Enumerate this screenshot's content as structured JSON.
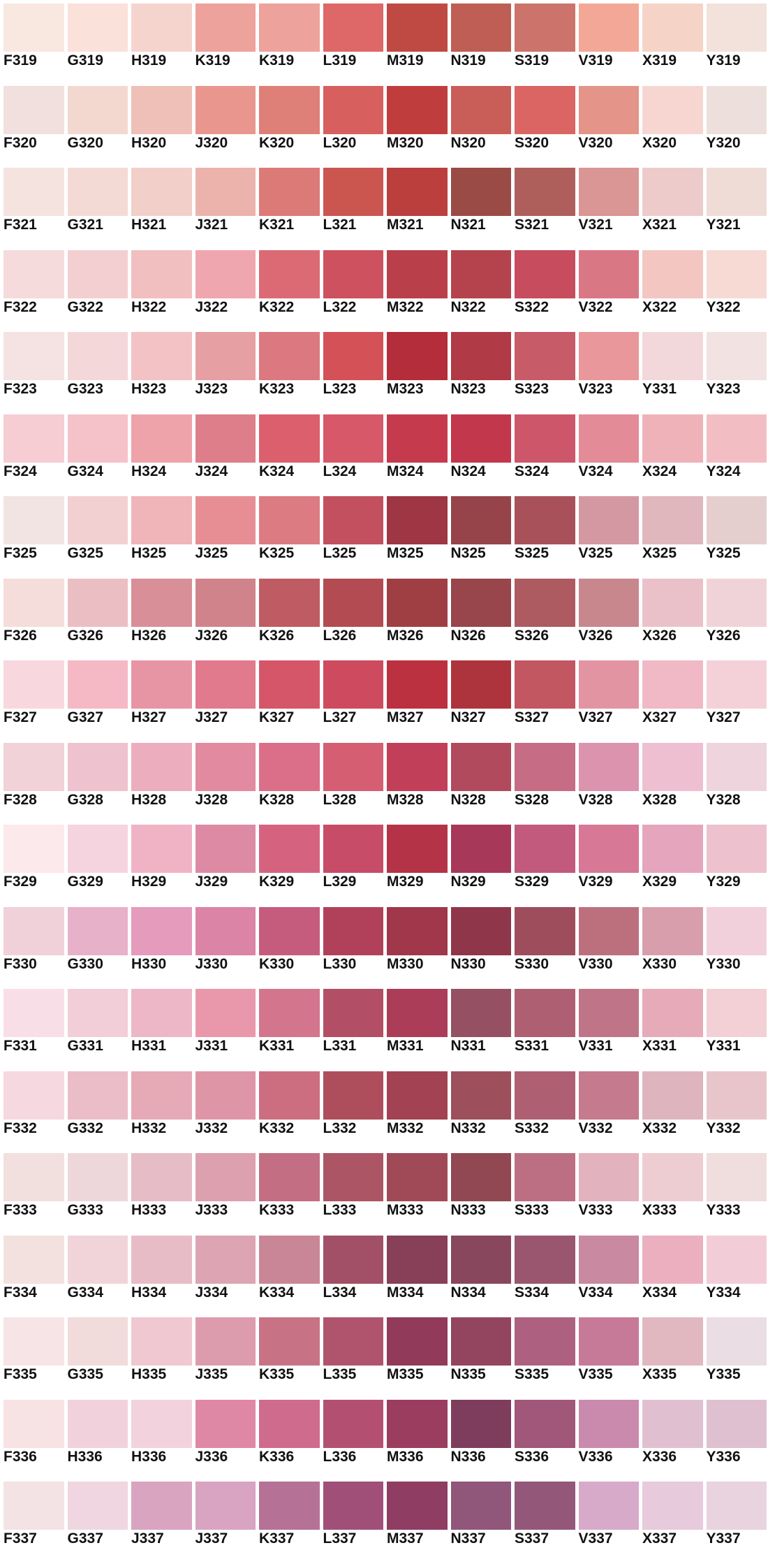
{
  "rows": [
    {
      "cells": [
        {
          "code": "F319",
          "color": "#F9E8E0"
        },
        {
          "code": "G319",
          "color": "#FAE1DA"
        },
        {
          "code": "H319",
          "color": "#F6D4CE"
        },
        {
          "code": "K319",
          "color": "#EEA29C"
        },
        {
          "code": "K319",
          "color": "#EEA29C"
        },
        {
          "code": "L319",
          "color": "#DE6767"
        },
        {
          "code": "M319",
          "color": "#BF4A43"
        },
        {
          "code": "N319",
          "color": "#BE5E54"
        },
        {
          "code": "S319",
          "color": "#CC746B"
        },
        {
          "code": "V319",
          "color": "#F3A897"
        },
        {
          "code": "X319",
          "color": "#F5D4C7"
        },
        {
          "code": "Y319",
          "color": "#F3E2DB"
        }
      ]
    },
    {
      "cells": [
        {
          "code": "F320",
          "color": "#F1E0DD"
        },
        {
          "code": "G320",
          "color": "#F3D8D0"
        },
        {
          "code": "H320",
          "color": "#EEC0B7"
        },
        {
          "code": "J320",
          "color": "#E8968E"
        },
        {
          "code": "K320",
          "color": "#DE7F78"
        },
        {
          "code": "L320",
          "color": "#D75F5E"
        },
        {
          "code": "M320",
          "color": "#C03D3E"
        },
        {
          "code": "N320",
          "color": "#C95D58"
        },
        {
          "code": "S320",
          "color": "#DA6562"
        },
        {
          "code": "V320",
          "color": "#E49488"
        },
        {
          "code": "X320",
          "color": "#F7D6D1"
        },
        {
          "code": "Y320",
          "color": "#EDE0DC"
        }
      ]
    },
    {
      "cells": [
        {
          "code": "F321",
          "color": "#F5E3DF"
        },
        {
          "code": "G321",
          "color": "#F4DAD5"
        },
        {
          "code": "H321",
          "color": "#F2CFC9"
        },
        {
          "code": "J321",
          "color": "#EBB3AC"
        },
        {
          "code": "K321",
          "color": "#DC7A78"
        },
        {
          "code": "L321",
          "color": "#CB5650"
        },
        {
          "code": "M321",
          "color": "#BA3F3D"
        },
        {
          "code": "N321",
          "color": "#9B4B45"
        },
        {
          "code": "S321",
          "color": "#AE5F5B"
        },
        {
          "code": "V321",
          "color": "#D99695"
        },
        {
          "code": "X321",
          "color": "#EDCBCA"
        },
        {
          "code": "Y321",
          "color": "#EFDCD7"
        }
      ]
    },
    {
      "cells": [
        {
          "code": "F322",
          "color": "#F5DBDB"
        },
        {
          "code": "G322",
          "color": "#F3CFD1"
        },
        {
          "code": "H322",
          "color": "#F2BFC0"
        },
        {
          "code": "J322",
          "color": "#F0A6AE"
        },
        {
          "code": "K322",
          "color": "#DB6A75"
        },
        {
          "code": "L322",
          "color": "#CD515E"
        },
        {
          "code": "M322",
          "color": "#B9404A"
        },
        {
          "code": "N322",
          "color": "#B5434D"
        },
        {
          "code": "S322",
          "color": "#C74C5E"
        },
        {
          "code": "V322",
          "color": "#DA7785"
        },
        {
          "code": "X322",
          "color": "#F4C6C2"
        },
        {
          "code": "Y322",
          "color": "#F7DAD4"
        }
      ]
    },
    {
      "cells": [
        {
          "code": "F323",
          "color": "#F5E2E2"
        },
        {
          "code": "G323",
          "color": "#F3D7D9"
        },
        {
          "code": "H323",
          "color": "#F2C2C4"
        },
        {
          "code": "J323",
          "color": "#E69FA2"
        },
        {
          "code": "K323",
          "color": "#DC7880"
        },
        {
          "code": "L323",
          "color": "#D45157"
        },
        {
          "code": "M323",
          "color": "#B42D3A"
        },
        {
          "code": "N323",
          "color": "#B03A45"
        },
        {
          "code": "S323",
          "color": "#C75B68"
        },
        {
          "code": "V323",
          "color": "#E9979B"
        },
        {
          "code": "Y331",
          "color": "#F2D8DA"
        },
        {
          "code": "Y323",
          "color": "#F3E2E2"
        }
      ]
    },
    {
      "cells": [
        {
          "code": "F324",
          "color": "#F5CDD3"
        },
        {
          "code": "G324",
          "color": "#F5C2CA"
        },
        {
          "code": "H324",
          "color": "#EEA3AA"
        },
        {
          "code": "J324",
          "color": "#DE7E8A"
        },
        {
          "code": "K324",
          "color": "#DC5F6D"
        },
        {
          "code": "L324",
          "color": "#D75868"
        },
        {
          "code": "M324",
          "color": "#C63A4D"
        },
        {
          "code": "N324",
          "color": "#C2374B"
        },
        {
          "code": "S324",
          "color": "#CE566A"
        },
        {
          "code": "V324",
          "color": "#E48B98"
        },
        {
          "code": "X324",
          "color": "#F0B2B9"
        },
        {
          "code": "Y324",
          "color": "#F3BEC3"
        }
      ]
    },
    {
      "cells": [
        {
          "code": "F325",
          "color": "#F2E4E2"
        },
        {
          "code": "G325",
          "color": "#F2D0D2"
        },
        {
          "code": "H325",
          "color": "#F0B5B8"
        },
        {
          "code": "J325",
          "color": "#E68E94"
        },
        {
          "code": "K325",
          "color": "#DC7B82"
        },
        {
          "code": "L325",
          "color": "#C2505F"
        },
        {
          "code": "M325",
          "color": "#9E3643"
        },
        {
          "code": "N325",
          "color": "#97434A"
        },
        {
          "code": "S325",
          "color": "#A9515A"
        },
        {
          "code": "V325",
          "color": "#D498A2"
        },
        {
          "code": "X325",
          "color": "#E0B7BC"
        },
        {
          "code": "Y325",
          "color": "#E5CECE"
        }
      ]
    },
    {
      "cells": [
        {
          "code": "F326",
          "color": "#F4DDDA"
        },
        {
          "code": "G326",
          "color": "#EBBEC3"
        },
        {
          "code": "H326",
          "color": "#D98F97"
        },
        {
          "code": "J326",
          "color": "#D1838B"
        },
        {
          "code": "K326",
          "color": "#BF5B62"
        },
        {
          "code": "L326",
          "color": "#B34C52"
        },
        {
          "code": "M326",
          "color": "#9F3F44"
        },
        {
          "code": "N326",
          "color": "#98454B"
        },
        {
          "code": "S326",
          "color": "#AD5A61"
        },
        {
          "code": "V326",
          "color": "#C8878D"
        },
        {
          "code": "X326",
          "color": "#EBC1C9"
        },
        {
          "code": "Y326",
          "color": "#F0D3D8"
        }
      ]
    },
    {
      "cells": [
        {
          "code": "F327",
          "color": "#F9D7DE"
        },
        {
          "code": "G327",
          "color": "#F4B9C5"
        },
        {
          "code": "H327",
          "color": "#E795A5"
        },
        {
          "code": "J327",
          "color": "#E07A8C"
        },
        {
          "code": "K327",
          "color": "#D65669"
        },
        {
          "code": "L327",
          "color": "#CE4A5E"
        },
        {
          "code": "M327",
          "color": "#BC3140"
        },
        {
          "code": "N327",
          "color": "#AD343D"
        },
        {
          "code": "S327",
          "color": "#C25661"
        },
        {
          "code": "V327",
          "color": "#E394A2"
        },
        {
          "code": "X327",
          "color": "#F0B9C5"
        },
        {
          "code": "Y327",
          "color": "#F4D1D9"
        }
      ]
    },
    {
      "cells": [
        {
          "code": "F328",
          "color": "#F1D2D9"
        },
        {
          "code": "G328",
          "color": "#EEC2CF"
        },
        {
          "code": "H328",
          "color": "#ECAEBF"
        },
        {
          "code": "J328",
          "color": "#E28AA0"
        },
        {
          "code": "K328",
          "color": "#DB6E88"
        },
        {
          "code": "L328",
          "color": "#D55E72"
        },
        {
          "code": "M328",
          "color": "#C13F58"
        },
        {
          "code": "N328",
          "color": "#B04A5C"
        },
        {
          "code": "S328",
          "color": "#C66C84"
        },
        {
          "code": "V328",
          "color": "#DB93AE"
        },
        {
          "code": "X328",
          "color": "#EEBFD0"
        },
        {
          "code": "Y328",
          "color": "#EDD4DD"
        }
      ]
    },
    {
      "cells": [
        {
          "code": "F329",
          "color": "#FCE9EB"
        },
        {
          "code": "G329",
          "color": "#F5D4E0"
        },
        {
          "code": "H329",
          "color": "#F0B3C6"
        },
        {
          "code": "J329",
          "color": "#DD8BA5"
        },
        {
          "code": "K329",
          "color": "#D5637F"
        },
        {
          "code": "L329",
          "color": "#C74C67"
        },
        {
          "code": "M329",
          "color": "#B43347"
        },
        {
          "code": "N329",
          "color": "#A7385A"
        },
        {
          "code": "S329",
          "color": "#C15A7C"
        },
        {
          "code": "V329",
          "color": "#D67896"
        },
        {
          "code": "X329",
          "color": "#E5A5BC"
        },
        {
          "code": "Y329",
          "color": "#EDC1CE"
        }
      ]
    },
    {
      "cells": [
        {
          "code": "F330",
          "color": "#F1D1D9"
        },
        {
          "code": "G330",
          "color": "#E7B1C9"
        },
        {
          "code": "H330",
          "color": "#E59BBB"
        },
        {
          "code": "J330",
          "color": "#DC84A5"
        },
        {
          "code": "K330",
          "color": "#C65C7D"
        },
        {
          "code": "L330",
          "color": "#B1415A"
        },
        {
          "code": "M330",
          "color": "#A0374A"
        },
        {
          "code": "N330",
          "color": "#90364A"
        },
        {
          "code": "S330",
          "color": "#9E4D5D"
        },
        {
          "code": "V330",
          "color": "#BC707E"
        },
        {
          "code": "X330",
          "color": "#D99EAC"
        },
        {
          "code": "Y330",
          "color": "#F1D0DC"
        }
      ]
    },
    {
      "cells": [
        {
          "code": "F331",
          "color": "#F8DFE7"
        },
        {
          "code": "G331",
          "color": "#F1CED8"
        },
        {
          "code": "H331",
          "color": "#EDB7C7"
        },
        {
          "code": "J331",
          "color": "#E998AC"
        },
        {
          "code": "K331",
          "color": "#D3758D"
        },
        {
          "code": "L331",
          "color": "#B24E65"
        },
        {
          "code": "M331",
          "color": "#AB3D59"
        },
        {
          "code": "N331",
          "color": "#955163"
        },
        {
          "code": "S331",
          "color": "#AE5F72"
        },
        {
          "code": "V331",
          "color": "#C07487"
        },
        {
          "code": "X331",
          "color": "#E6AAB8"
        },
        {
          "code": "Y331",
          "color": "#F2D0D5"
        }
      ]
    },
    {
      "cells": [
        {
          "code": "F332",
          "color": "#F6D8E0"
        },
        {
          "code": "G332",
          "color": "#EBBDC8"
        },
        {
          "code": "H332",
          "color": "#E6A9B6"
        },
        {
          "code": "J332",
          "color": "#DE95A6"
        },
        {
          "code": "K332",
          "color": "#CC6E80"
        },
        {
          "code": "L332",
          "color": "#AE4E5D"
        },
        {
          "code": "M332",
          "color": "#A24253"
        },
        {
          "code": "N332",
          "color": "#9D4F5C"
        },
        {
          "code": "S332",
          "color": "#AE5F72"
        },
        {
          "code": "V332",
          "color": "#C57A8D"
        },
        {
          "code": "X332",
          "color": "#DEB5BF"
        },
        {
          "code": "Y332",
          "color": "#E8C5CB"
        }
      ]
    },
    {
      "cells": [
        {
          "code": "F333",
          "color": "#F2E0DE"
        },
        {
          "code": "G333",
          "color": "#EED7DB"
        },
        {
          "code": "H333",
          "color": "#E6BCC6"
        },
        {
          "code": "J333",
          "color": "#DDA0AF"
        },
        {
          "code": "K333",
          "color": "#C36E82"
        },
        {
          "code": "L333",
          "color": "#AB5565"
        },
        {
          "code": "M333",
          "color": "#A04A58"
        },
        {
          "code": "N333",
          "color": "#914852"
        },
        {
          "code": "S333",
          "color": "#BC6F83"
        },
        {
          "code": "V333",
          "color": "#E2B2BF"
        },
        {
          "code": "X333",
          "color": "#EECDD2"
        },
        {
          "code": "Y333",
          "color": "#F0DDDD"
        }
      ]
    },
    {
      "cells": [
        {
          "code": "F334",
          "color": "#F3E1E0"
        },
        {
          "code": "G334",
          "color": "#F0D4D9"
        },
        {
          "code": "H334",
          "color": "#E8BCC7"
        },
        {
          "code": "J334",
          "color": "#DDA5B4"
        },
        {
          "code": "K334",
          "color": "#C98696"
        },
        {
          "code": "L334",
          "color": "#A25068"
        },
        {
          "code": "M334",
          "color": "#883F58"
        },
        {
          "code": "N334",
          "color": "#88475C"
        },
        {
          "code": "S334",
          "color": "#9A566F"
        },
        {
          "code": "V334",
          "color": "#C889A1"
        },
        {
          "code": "X334",
          "color": "#ECAFC0"
        },
        {
          "code": "Y334",
          "color": "#F2CDD7"
        }
      ]
    },
    {
      "cells": [
        {
          "code": "F335",
          "color": "#F6E4E6"
        },
        {
          "code": "G335",
          "color": "#F1DBDB"
        },
        {
          "code": "H335",
          "color": "#F0C8D1"
        },
        {
          "code": "J335",
          "color": "#DD9CAD"
        },
        {
          "code": "K335",
          "color": "#C87286"
        },
        {
          "code": "L335",
          "color": "#B0546E"
        },
        {
          "code": "M335",
          "color": "#923A5A"
        },
        {
          "code": "N335",
          "color": "#93445F"
        },
        {
          "code": "S335",
          "color": "#AD6080"
        },
        {
          "code": "V335",
          "color": "#C77A97"
        },
        {
          "code": "X335",
          "color": "#E1B8C0"
        },
        {
          "code": "Y335",
          "color": "#EADDE3"
        }
      ]
    },
    {
      "cells": [
        {
          "code": "F336",
          "color": "#F7E2E4"
        },
        {
          "code": "H336",
          "color": "#F1D2DC"
        },
        {
          "code": "H336",
          "color": "#F2D3DD"
        },
        {
          "code": "J336",
          "color": "#DF88A5"
        },
        {
          "code": "K336",
          "color": "#CF6B8C"
        },
        {
          "code": "L336",
          "color": "#B35072"
        },
        {
          "code": "M336",
          "color": "#9A3D5E"
        },
        {
          "code": "N336",
          "color": "#7F3D5E"
        },
        {
          "code": "S336",
          "color": "#A05779"
        },
        {
          "code": "V336",
          "color": "#C98AAE"
        },
        {
          "code": "X336",
          "color": "#E0C0D0"
        },
        {
          "code": "Y336",
          "color": "#DEC0D0"
        }
      ]
    },
    {
      "cells": [
        {
          "code": "F337",
          "color": "#F3E3E4"
        },
        {
          "code": "G337",
          "color": "#EFD6E1"
        },
        {
          "code": "J337",
          "color": "#D9A4C0"
        },
        {
          "code": "J337",
          "color": "#D8A4C2"
        },
        {
          "code": "K337",
          "color": "#B57296"
        },
        {
          "code": "L337",
          "color": "#A05078"
        },
        {
          "code": "M337",
          "color": "#8F3D63"
        },
        {
          "code": "N337",
          "color": "#90577A"
        },
        {
          "code": "S337",
          "color": "#935879"
        },
        {
          "code": "V337",
          "color": "#D7AACA"
        },
        {
          "code": "X337",
          "color": "#E7CADB"
        },
        {
          "code": "Y337",
          "color": "#E9D3DE"
        }
      ]
    }
  ]
}
